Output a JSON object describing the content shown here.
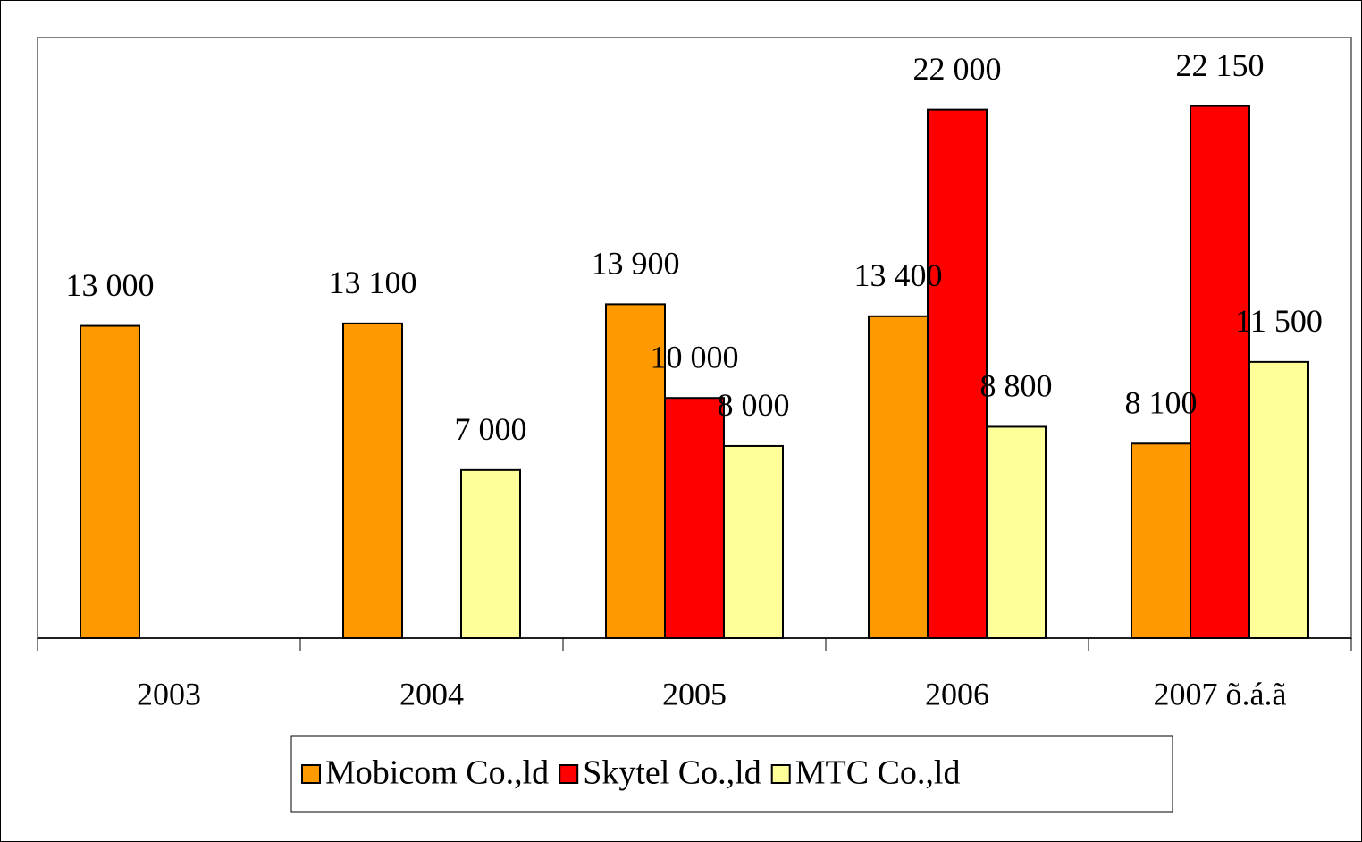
{
  "chart_data": {
    "type": "bar",
    "categories": [
      "2003",
      "2004",
      "2005",
      "2006",
      "2007 õ.á.ã"
    ],
    "series": [
      {
        "name": "Mobicom Co.,ld",
        "color": "#ff9900",
        "values": [
          13000,
          13100,
          13900,
          13400,
          8100
        ],
        "value_labels": [
          "13 000",
          "13 100",
          "13 900",
          "13 400",
          "8 100"
        ]
      },
      {
        "name": "Skytel Co.,ld",
        "color": "#ff0000",
        "values": [
          null,
          null,
          10000,
          22000,
          22150
        ],
        "value_labels": [
          null,
          null,
          "10 000",
          "22 000",
          "22 150"
        ]
      },
      {
        "name": "MTC Co.,ld",
        "color": "#ffff99",
        "values": [
          null,
          7000,
          8000,
          8800,
          11500
        ],
        "value_labels": [
          null,
          "7 000",
          "8 000",
          "8 800",
          "11 500"
        ]
      }
    ],
    "ylim": [
      0,
      25000
    ],
    "legend": "bottom"
  }
}
